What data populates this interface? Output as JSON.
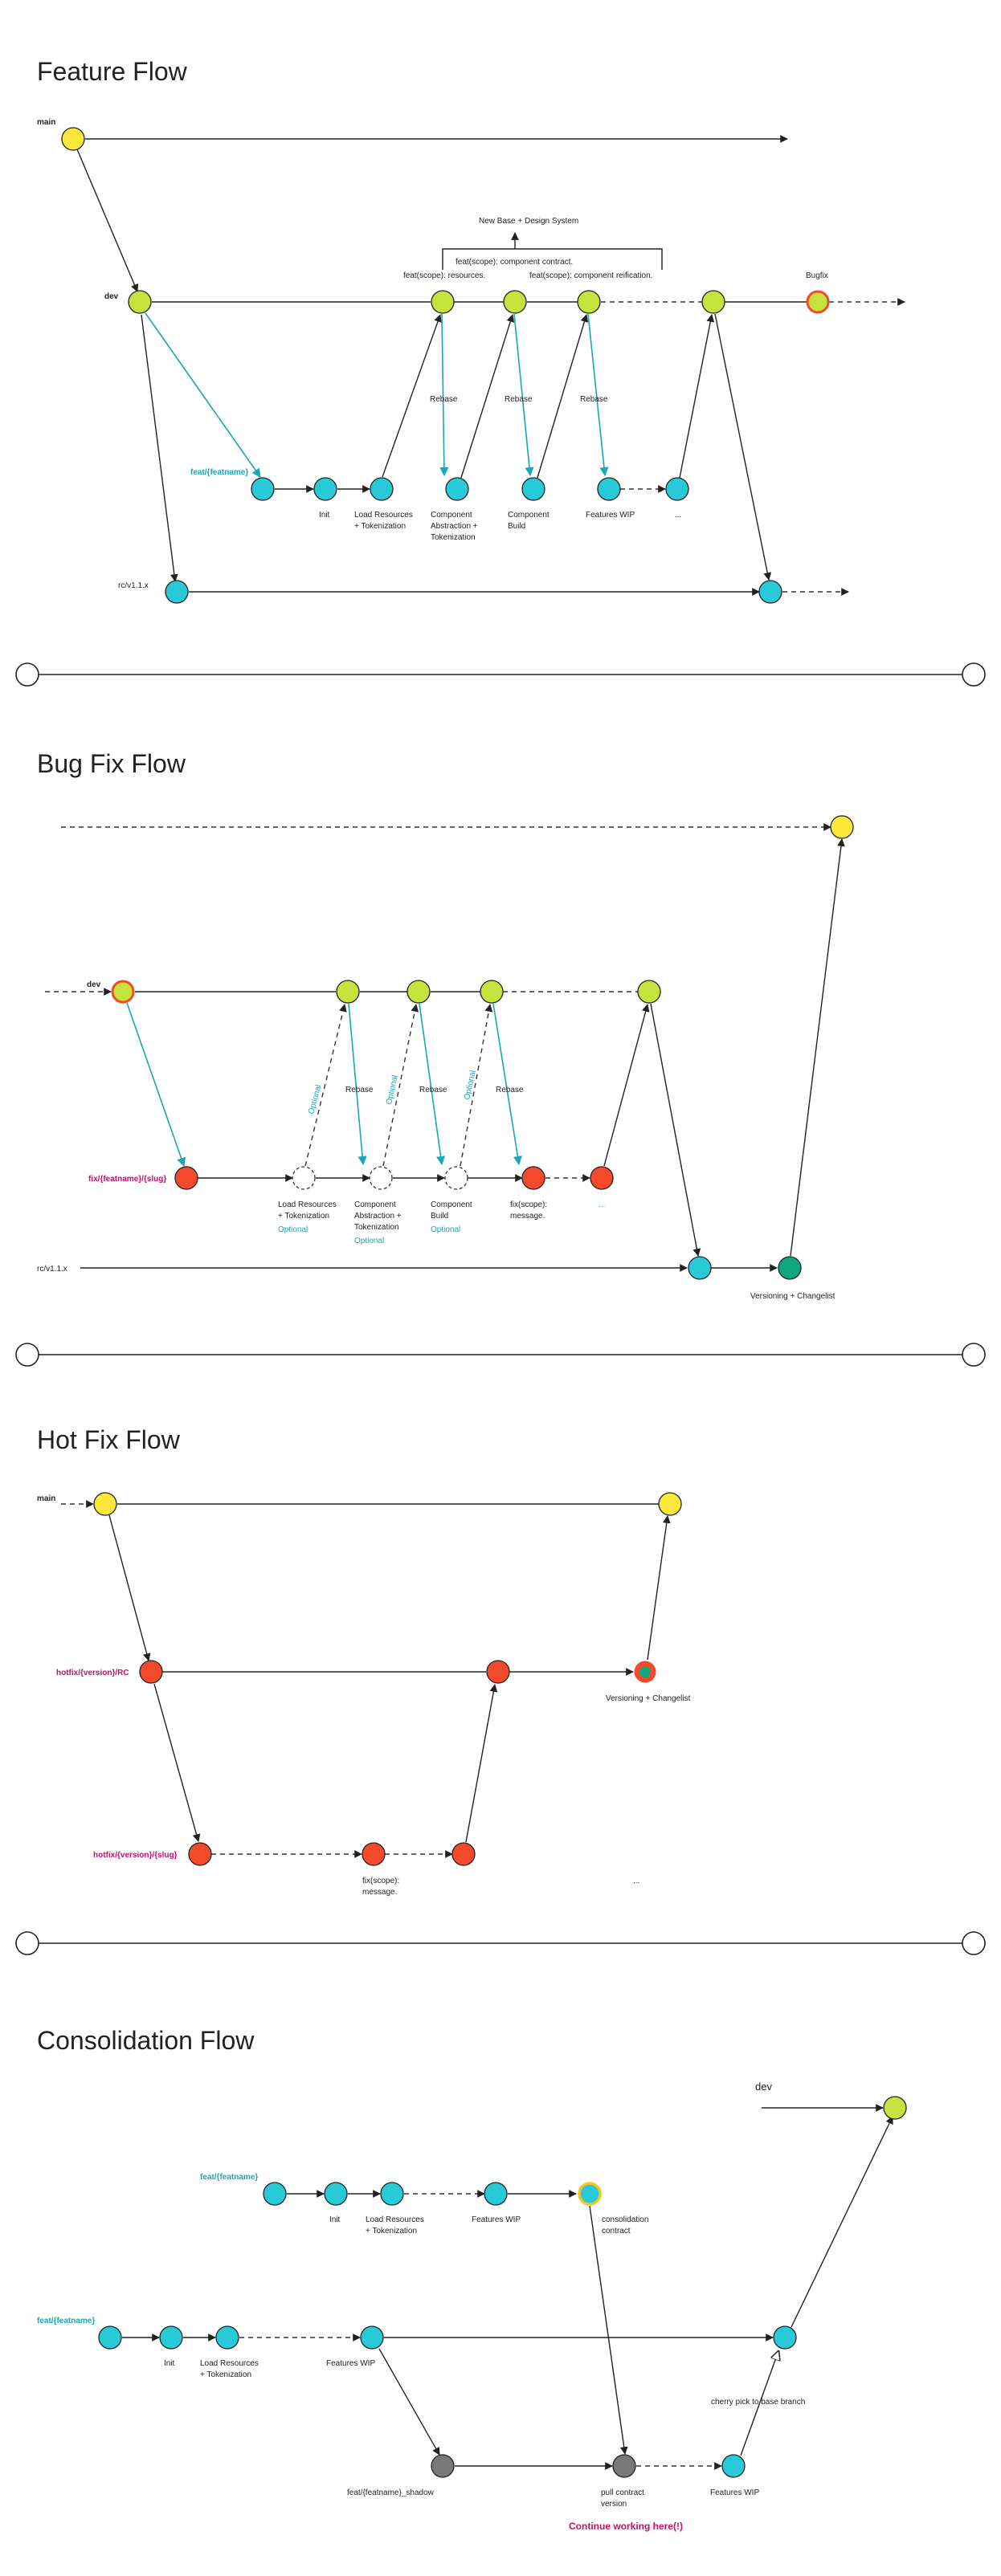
{
  "colors": {
    "main": "#fbe83a",
    "dev": "#c6e23c",
    "feat": "#28cad8",
    "fix": "#f5492b",
    "success": "#10a77f",
    "gray": "#787878",
    "teal_text": "#1aa6b7",
    "magenta_text": "#c0126b",
    "ring_red": "#f5492b",
    "ring_yellow": "#f7c321"
  },
  "feature": {
    "title": "Feature Flow",
    "main_label": "main",
    "dev_label": "dev",
    "rc_label": "rc/v1.1.x",
    "feat_label": "feat/{featname}",
    "bugfix_label": "Bugfix",
    "design_system_label": "New Base + Design System",
    "contract_label": "feat(scope): component contract.",
    "resources_label": "feat(scope): resources.",
    "reification_label": "feat(scope): component reification.",
    "rebase1": "Rebase",
    "rebase2": "Rebase",
    "rebase3": "Rebase",
    "init": "Init",
    "load1": "Load Resources",
    "load2": "+ Tokenization",
    "comp_abs1": "Component",
    "comp_abs2": "Abstraction +",
    "comp_abs3": "Tokenization",
    "comp_build1": "Component",
    "comp_build2": "Build",
    "features_wip": "Features WIP",
    "ellipsis": "..."
  },
  "bugfix": {
    "title": "Bug Fix Flow",
    "dev_label": "dev",
    "fix_label": "fix/{featname}/{slug}",
    "rc_label": "rc/v1.1.x",
    "optional1": "Optional",
    "optional2": "Optional",
    "optional3": "Optional",
    "rebase1": "Rebase",
    "rebase2": "Rebase",
    "rebase3": "Rebase",
    "load1": "Load Resources",
    "load2": "+ Tokenization",
    "load_opt": "Optional",
    "comp_abs1": "Component",
    "comp_abs2": "Abstraction +",
    "comp_abs3": "Tokenization",
    "comp_abs_opt": "Optional",
    "comp_build1": "Component",
    "comp_build2": "Build",
    "comp_build_opt": "Optional",
    "fix_msg1": "fix(scope):",
    "fix_msg2": "message.",
    "ellipsis": "...",
    "versioning": "Versioning + Changelist"
  },
  "hotfix": {
    "title": "Hot Fix Flow",
    "main_label": "main",
    "rc_label": "hotfix/{version}/RC",
    "slug_label": "hotfix/{version}/{slug}",
    "versioning": "Versioning + Changelist",
    "fix_msg1": "fix(scope):",
    "fix_msg2": "message.",
    "ellipsis": "..."
  },
  "consolidation": {
    "title": "Consolidation Flow",
    "dev_label": "dev",
    "feat_a_label": "feat/{featname}",
    "feat_b_label": "feat/{featname}",
    "init_a": "Init",
    "load_a1": "Load Resources",
    "load_a2": "+ Tokenization",
    "wip_a": "Features WIP",
    "contract1": "consolidation",
    "contract2": "contract",
    "init_b": "Init",
    "load_b1": "Load Resources",
    "load_b2": "+ Tokenization",
    "wip_b": "Features WIP",
    "shadow": "feat/{featname}_shadow",
    "pull1": "pull contract",
    "pull2": "version",
    "wip_c": "Features WIP",
    "cherry": "cherry pick to base branch",
    "continue": "Continue working here(!)"
  }
}
